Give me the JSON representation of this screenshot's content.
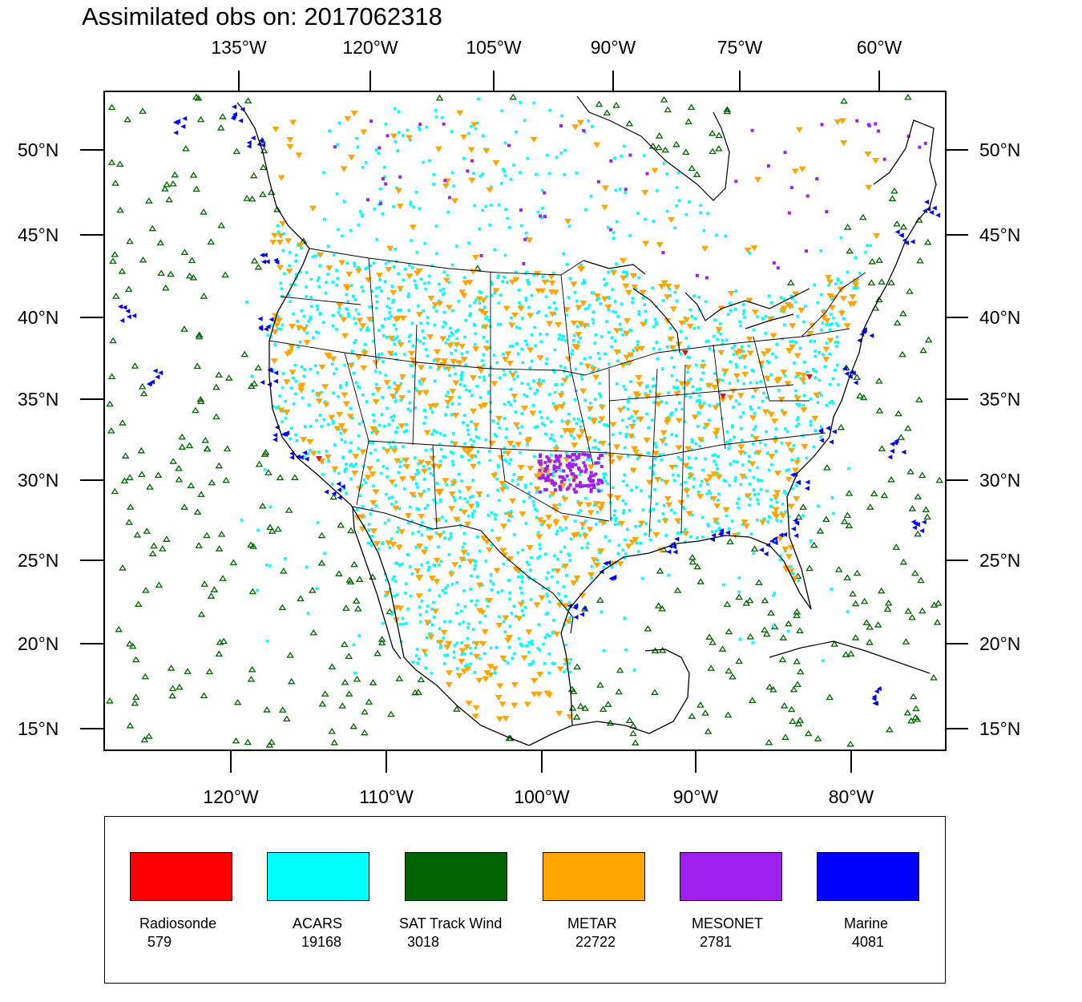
{
  "title": "Assimilated obs on: 2017062318",
  "top_lon_labels": [
    "135°W",
    "120°W",
    "105°W",
    "90°W",
    "75°W",
    "60°W"
  ],
  "bottom_lon_labels": [
    "120°W",
    "110°W",
    "100°W",
    "90°W",
    "80°W"
  ],
  "lat_labels": [
    "50°N",
    "45°N",
    "40°N",
    "35°N",
    "30°N",
    "25°N",
    "20°N",
    "15°N"
  ],
  "colors": {
    "radiosonde": "#ff0000",
    "acars": "#00ffff",
    "sat_track_wind": "#006400",
    "metar": "#ffa500",
    "mesonet": "#a020f0",
    "marine": "#0000ff"
  },
  "legend": [
    {
      "name": "Radiosonde",
      "count": "579",
      "color": "#ff0000"
    },
    {
      "name": "ACARS",
      "count": "19168",
      "color": "#00ffff"
    },
    {
      "name": "SAT Track Wind",
      "count": "3018",
      "color": "#006400"
    },
    {
      "name": "METAR",
      "count": "22722",
      "color": "#ffa500"
    },
    {
      "name": "MESONET",
      "count": "2781",
      "color": "#a020f0"
    },
    {
      "name": "Marine",
      "count": "4081",
      "color": "#0000ff"
    }
  ]
}
